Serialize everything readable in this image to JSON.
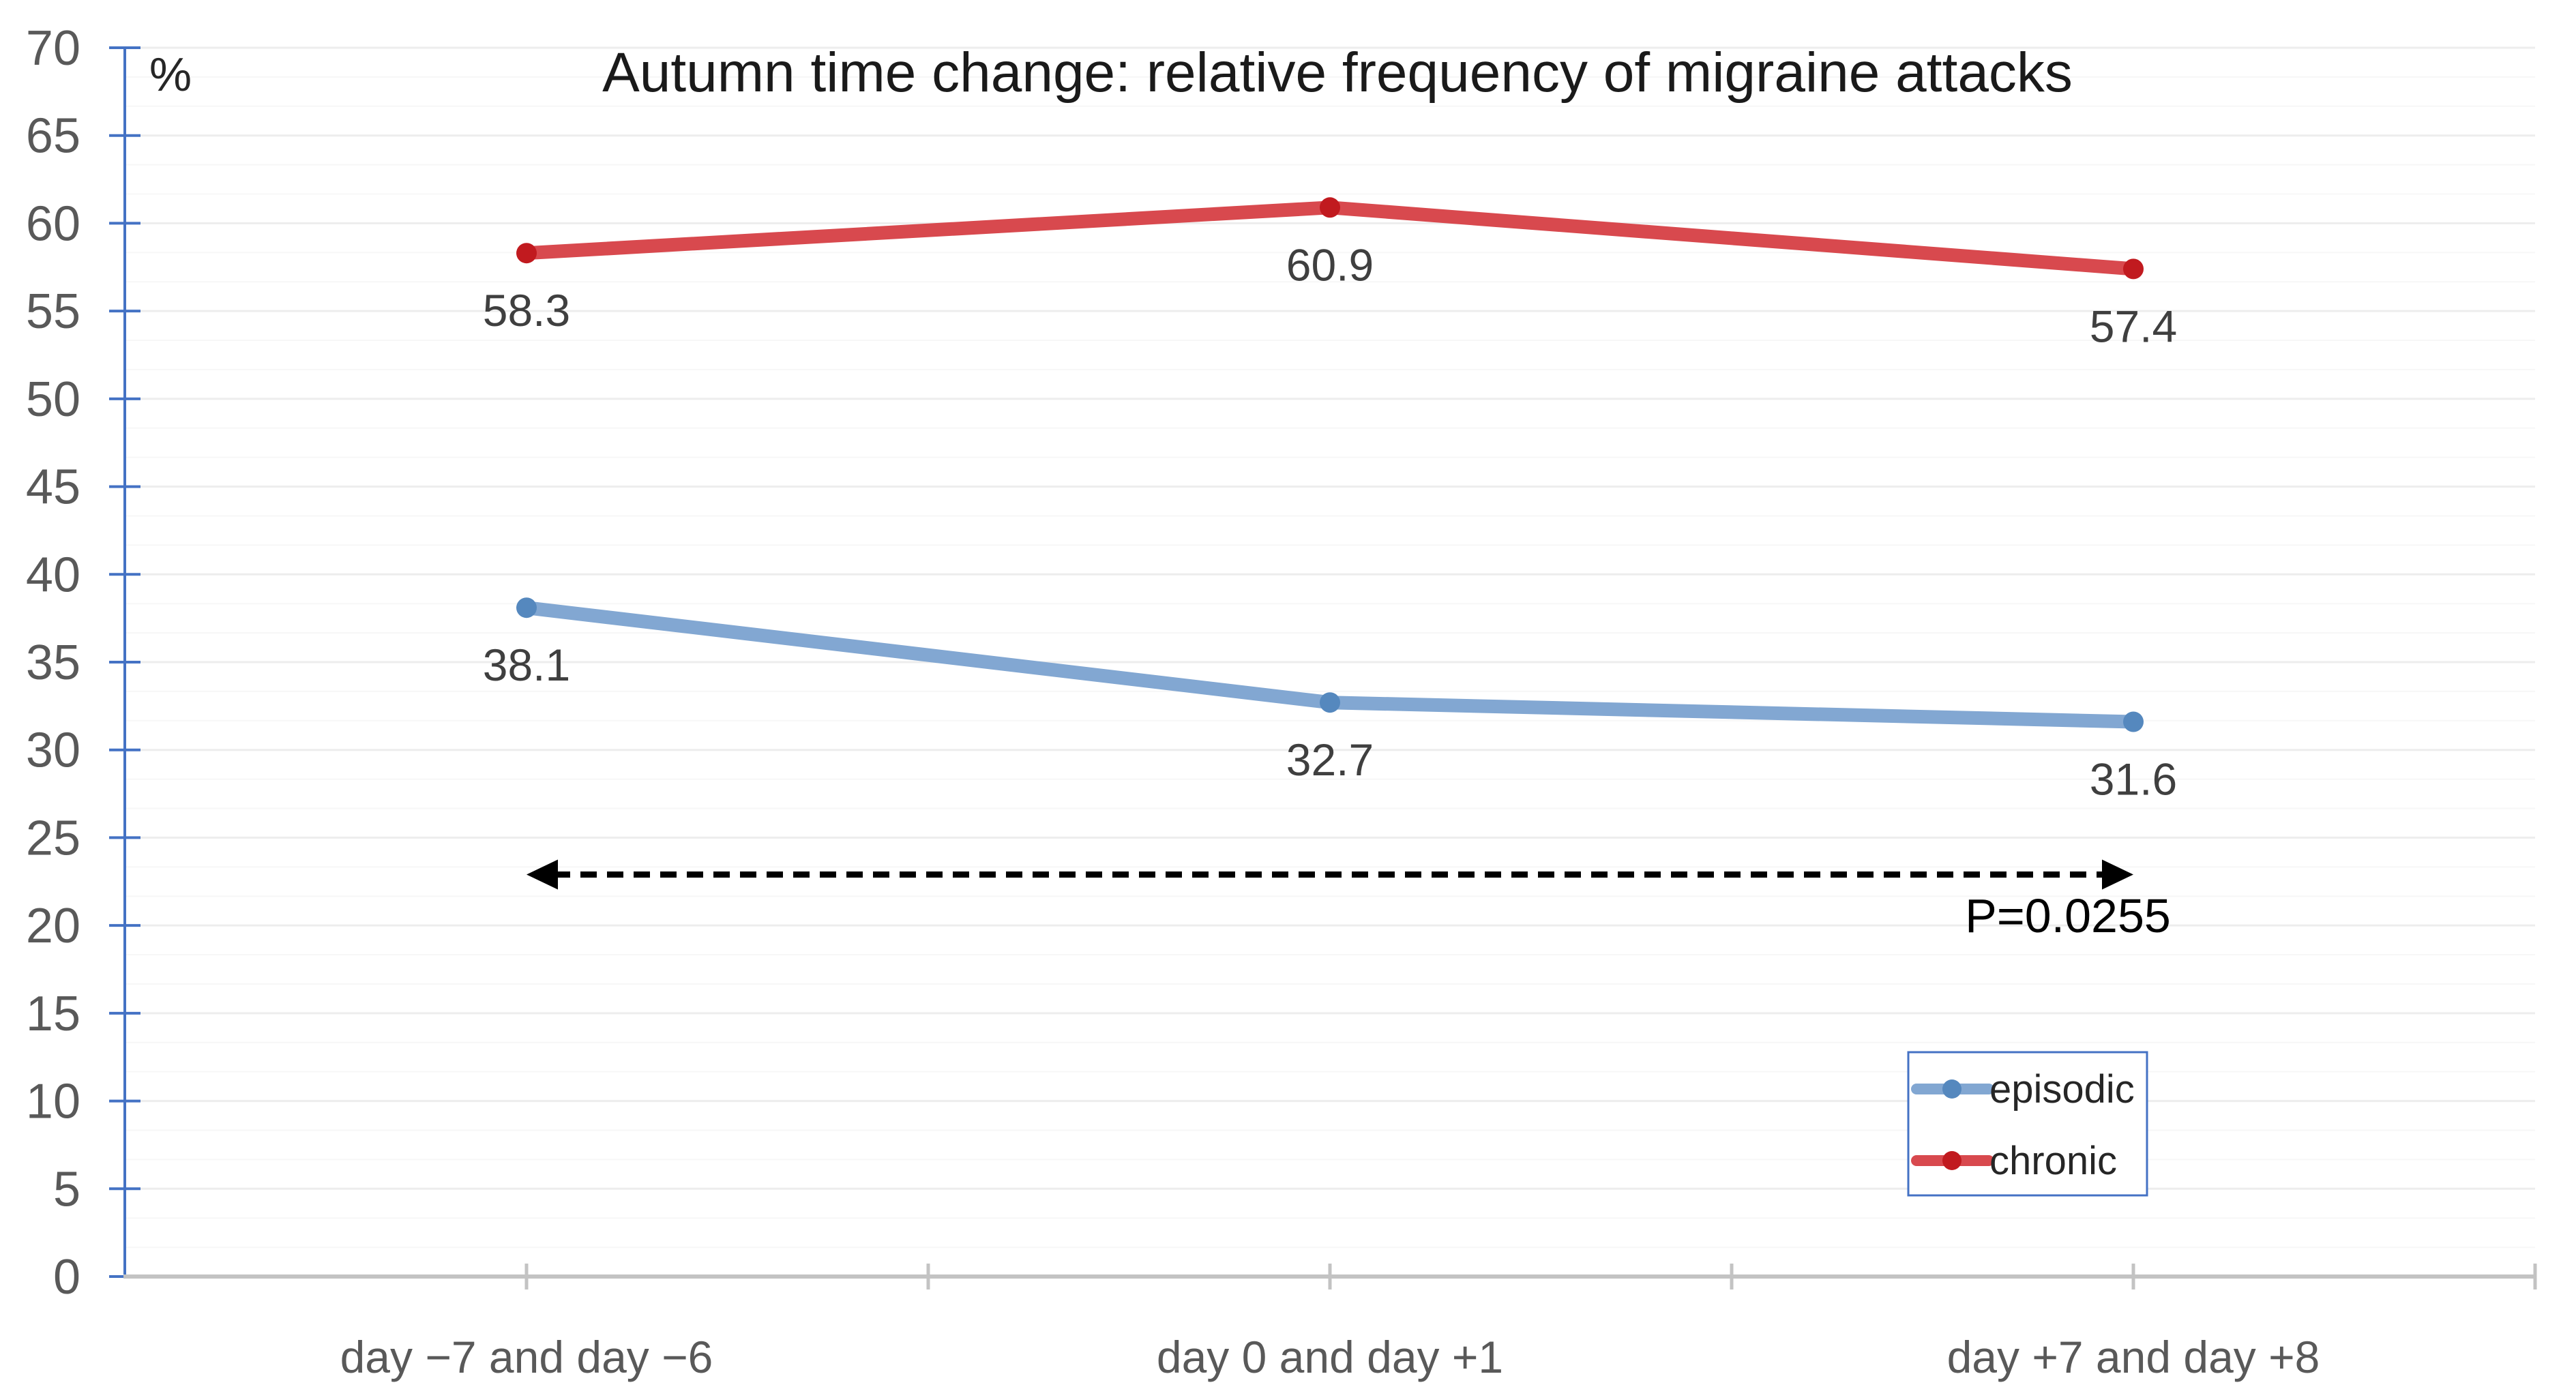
{
  "chart_data": {
    "type": "line",
    "title": "Autumn time change: relative frequency of migraine attacks",
    "y_unit_label": "%",
    "xlabel": "",
    "ylabel": "%",
    "ylim": [
      0,
      70
    ],
    "ytick_step": 5,
    "grid": "faint horizontal gridlines, stronger every 5 units",
    "categories": [
      "day −7 and day −6",
      "day 0 and day +1",
      "day +7 and day +8"
    ],
    "series": [
      {
        "name": "episodic",
        "values": [
          38.1,
          32.7,
          31.6
        ],
        "line_color": "#82A7D2",
        "marker_color": "#5588BE"
      },
      {
        "name": "chronic",
        "values": [
          58.3,
          60.9,
          57.4
        ],
        "line_color": "#D8494E",
        "marker_color": "#C11A1F"
      }
    ],
    "data_labels": {
      "episodic": [
        "38.1",
        "32.7",
        "31.6"
      ],
      "chronic": [
        "58.3",
        "60.9",
        "57.4"
      ]
    },
    "legend": {
      "position": "lower-right",
      "entries": [
        "episodic",
        "chronic"
      ]
    },
    "annotation": {
      "label": "P=0.0255",
      "arrow_style": "dashed double-headed horizontal arrow",
      "arrow_y_value": 22.9,
      "arrow_from_category": "day −7 and day −6",
      "arrow_to_category": "day +7 and day +8"
    }
  },
  "colors": {
    "background": "#FFFFFF",
    "y_axis": "#4472C4",
    "x_axis": "#C3C3C3",
    "gridline_major": "#EDEDED",
    "gridline_minor": "#F7F7F7",
    "tick_label": "#595959",
    "data_label": "#3F3F3F",
    "title_text": "#1A1A1A",
    "legend_border": "#4472C4",
    "legend_text": "#262626",
    "annotation_text": "#000000"
  }
}
